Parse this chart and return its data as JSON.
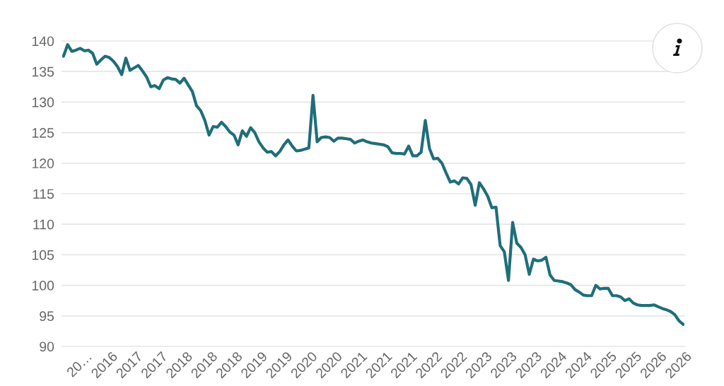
{
  "chart_data": {
    "type": "line",
    "categories": [
      null,
      null,
      null,
      null,
      "20…",
      null,
      null,
      null,
      null,
      null,
      "2016",
      null,
      null,
      null,
      null,
      null,
      "2017",
      null,
      null,
      null,
      null,
      null,
      "2017",
      null,
      null,
      null,
      null,
      null,
      "2018",
      null,
      null,
      null,
      null,
      null,
      "2018",
      null,
      null,
      null,
      null,
      null,
      "2018",
      null,
      null,
      null,
      null,
      null,
      "2019",
      null,
      null,
      null,
      null,
      null,
      "2019",
      null,
      null,
      null,
      null,
      null,
      "2020",
      null,
      null,
      null,
      null,
      null,
      "2020",
      null,
      null,
      null,
      null,
      null,
      "2021",
      null,
      null,
      null,
      null,
      null,
      "2021",
      null,
      null,
      null,
      null,
      null,
      "2021",
      null,
      null,
      null,
      null,
      null,
      "2022",
      null,
      null,
      null,
      null,
      null,
      "2022",
      null,
      null,
      null,
      null,
      null,
      "2023",
      null,
      null,
      null,
      null,
      null,
      "2023",
      null,
      null,
      null,
      null,
      null,
      "2023",
      null,
      null,
      null,
      null,
      null,
      "2024",
      null,
      null,
      null,
      null,
      null,
      "2024",
      null,
      null,
      null,
      null,
      null,
      "2025",
      null,
      null,
      null,
      null,
      null,
      "2025",
      null,
      null,
      null,
      null,
      null,
      "2026",
      null,
      null,
      null,
      null,
      null,
      "2026",
      null
    ],
    "series": [
      {
        "color": "#1f6e7a",
        "values": [
          137.5,
          139.4,
          138.3,
          138.5,
          138.8,
          138.4,
          138.5,
          138.0,
          136.2,
          136.9,
          137.5,
          137.3,
          136.7,
          135.8,
          134.5,
          137.2,
          135.2,
          135.6,
          136.0,
          135.1,
          134.1,
          132.5,
          132.7,
          132.2,
          133.6,
          134.0,
          133.8,
          133.7,
          133.1,
          133.9,
          132.8,
          131.7,
          129.4,
          128.6,
          127.0,
          124.6,
          126.0,
          125.9,
          126.7,
          126.0,
          125.1,
          124.6,
          123.0,
          125.3,
          124.4,
          125.8,
          125.0,
          123.5,
          122.5,
          121.8,
          121.9,
          121.2,
          121.9,
          123.0,
          123.8,
          122.8,
          122.0,
          122.1,
          122.3,
          122.5,
          131.1,
          123.5,
          124.2,
          124.3,
          124.2,
          123.6,
          124.1,
          124.1,
          124.0,
          123.9,
          123.3,
          123.6,
          123.8,
          123.5,
          123.3,
          123.2,
          123.1,
          123.0,
          122.7,
          121.7,
          121.6,
          121.6,
          121.5,
          122.8,
          121.2,
          121.2,
          121.8,
          127.0,
          122.4,
          120.7,
          120.8,
          120.0,
          118.4,
          116.9,
          117.1,
          116.6,
          117.6,
          117.5,
          116.5,
          113.1,
          116.8,
          115.8,
          114.6,
          112.7,
          112.8,
          106.5,
          105.5,
          100.8,
          110.3,
          106.9,
          106.2,
          105.0,
          101.8,
          104.3,
          104.0,
          104.1,
          104.6,
          101.7,
          100.8,
          100.7,
          100.6,
          100.4,
          100.1,
          99.3,
          98.9,
          98.4,
          98.3,
          98.3,
          100.0,
          99.4,
          99.5,
          99.5,
          98.3,
          98.3,
          98.1,
          97.5,
          97.8,
          97.1,
          96.8,
          96.7,
          96.7,
          96.7,
          96.8,
          96.5,
          96.2,
          96.0,
          95.7,
          95.2,
          94.2,
          93.6
        ]
      }
    ],
    "ylim": [
      90,
      140
    ],
    "yticks": [
      90,
      95,
      100,
      105,
      110,
      115,
      120,
      125,
      130,
      135,
      140
    ],
    "grid": "y"
  }
}
